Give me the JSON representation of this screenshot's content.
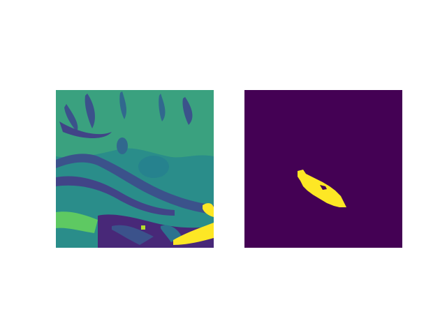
{
  "figure": {
    "background": "#ffffff",
    "panels": [
      {
        "kind": "mri-slice",
        "colormap": "viridis",
        "colors": {
          "dark": "#440154",
          "darkBlue": "#3b528b",
          "teal": "#21918c",
          "tealLight": "#27ad81",
          "green": "#5ec962",
          "yellow": "#fde725"
        }
      },
      {
        "kind": "segmentation-mask",
        "colormap": "viridis",
        "colors": {
          "background": "#440154",
          "mask": "#fde725"
        }
      }
    ]
  }
}
